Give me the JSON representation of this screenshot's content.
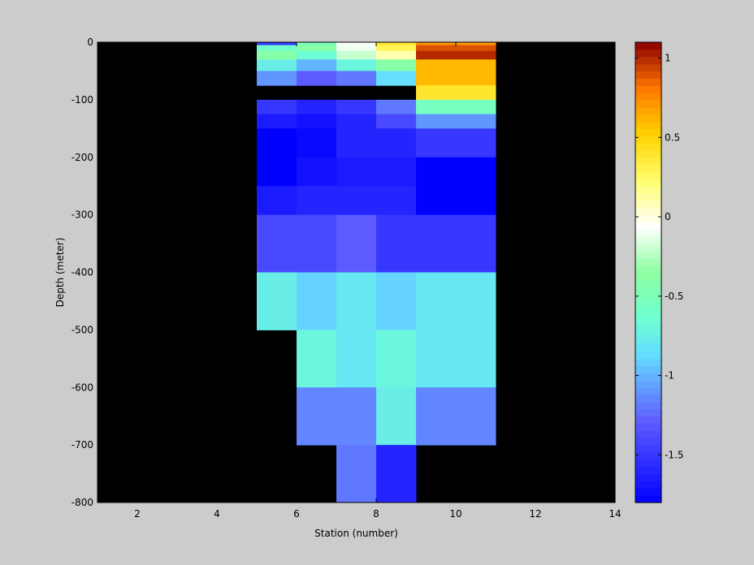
{
  "chart_data": {
    "type": "heatmap",
    "xlabel": "Station (number)",
    "ylabel": "Depth (meter)",
    "xlim": [
      1,
      14
    ],
    "ylim": [
      -800,
      0
    ],
    "x_ticks": [
      "2",
      "4",
      "6",
      "8",
      "10",
      "12",
      "14"
    ],
    "y_ticks": [
      "0",
      "-100",
      "-200",
      "-300",
      "-400",
      "-500",
      "-600",
      "-700",
      "-800"
    ],
    "nan_color": "#000000",
    "background_color": "#cccccc",
    "colorbar": {
      "range": [
        -1.8,
        1.1
      ],
      "ticks": [
        "1",
        "0.5",
        "0",
        "-0.5",
        "-1",
        "-1.5"
      ],
      "colormap": "jet-like (blue-cyan-green-white-yellow-orange-darkred)"
    },
    "cells": [
      {
        "x0": 5,
        "x1": 6,
        "y0": -5,
        "y1": 0,
        "value": -1.5
      },
      {
        "x0": 5,
        "x1": 6,
        "y0": -15,
        "y1": -5,
        "value": -0.6
      },
      {
        "x0": 5,
        "x1": 6,
        "y0": -30,
        "y1": -15,
        "value": -0.4
      },
      {
        "x0": 5,
        "x1": 6,
        "y0": -50,
        "y1": -30,
        "value": -0.75
      },
      {
        "x0": 5,
        "x1": 6,
        "y0": -75,
        "y1": -50,
        "value": -1.1
      },
      {
        "x0": 5,
        "x1": 6,
        "y0": -125,
        "y1": -100,
        "value": -1.5
      },
      {
        "x0": 5,
        "x1": 6,
        "y0": -150,
        "y1": -125,
        "value": -1.65
      },
      {
        "x0": 5,
        "x1": 6,
        "y0": -200,
        "y1": -150,
        "value": -1.8
      },
      {
        "x0": 5,
        "x1": 6,
        "y0": -250,
        "y1": -200,
        "value": -1.8
      },
      {
        "x0": 5,
        "x1": 6,
        "y0": -300,
        "y1": -250,
        "value": -1.65
      },
      {
        "x0": 5,
        "x1": 6,
        "y0": -400,
        "y1": -300,
        "value": -1.4
      },
      {
        "x0": 5,
        "x1": 6,
        "y0": -500,
        "y1": -400,
        "value": -0.75
      },
      {
        "x0": 6,
        "x1": 7,
        "y0": -5,
        "y1": 0,
        "value": -0.5
      },
      {
        "x0": 6,
        "x1": 7,
        "y0": -15,
        "y1": -5,
        "value": -0.4
      },
      {
        "x0": 6,
        "x1": 7,
        "y0": -30,
        "y1": -15,
        "value": -0.65
      },
      {
        "x0": 6,
        "x1": 7,
        "y0": -50,
        "y1": -30,
        "value": -1.0
      },
      {
        "x0": 6,
        "x1": 7,
        "y0": -75,
        "y1": -50,
        "value": -1.3
      },
      {
        "x0": 6,
        "x1": 7,
        "y0": -125,
        "y1": -100,
        "value": -1.6
      },
      {
        "x0": 6,
        "x1": 7,
        "y0": -150,
        "y1": -125,
        "value": -1.7
      },
      {
        "x0": 6,
        "x1": 7,
        "y0": -200,
        "y1": -150,
        "value": -1.75
      },
      {
        "x0": 6,
        "x1": 7,
        "y0": -250,
        "y1": -200,
        "value": -1.7
      },
      {
        "x0": 6,
        "x1": 7,
        "y0": -300,
        "y1": -250,
        "value": -1.6
      },
      {
        "x0": 6,
        "x1": 7,
        "y0": -400,
        "y1": -300,
        "value": -1.4
      },
      {
        "x0": 6,
        "x1": 7,
        "y0": -500,
        "y1": -400,
        "value": -0.9
      },
      {
        "x0": 6,
        "x1": 7,
        "y0": -600,
        "y1": -500,
        "value": -0.7
      },
      {
        "x0": 6,
        "x1": 7,
        "y0": -700,
        "y1": -600,
        "value": -1.15
      },
      {
        "x0": 7,
        "x1": 8,
        "y0": -5,
        "y1": 0,
        "value": -0.05
      },
      {
        "x0": 7,
        "x1": 8,
        "y0": -15,
        "y1": -5,
        "value": -0.1
      },
      {
        "x0": 7,
        "x1": 8,
        "y0": -30,
        "y1": -15,
        "value": -0.2
      },
      {
        "x0": 7,
        "x1": 8,
        "y0": -50,
        "y1": -30,
        "value": -0.7
      },
      {
        "x0": 7,
        "x1": 8,
        "y0": -75,
        "y1": -50,
        "value": -1.2
      },
      {
        "x0": 7,
        "x1": 8,
        "y0": -125,
        "y1": -100,
        "value": -1.5
      },
      {
        "x0": 7,
        "x1": 8,
        "y0": -150,
        "y1": -125,
        "value": -1.6
      },
      {
        "x0": 7,
        "x1": 8,
        "y0": -200,
        "y1": -150,
        "value": -1.6
      },
      {
        "x0": 7,
        "x1": 8,
        "y0": -250,
        "y1": -200,
        "value": -1.65
      },
      {
        "x0": 7,
        "x1": 8,
        "y0": -300,
        "y1": -250,
        "value": -1.6
      },
      {
        "x0": 7,
        "x1": 8,
        "y0": -400,
        "y1": -300,
        "value": -1.3
      },
      {
        "x0": 7,
        "x1": 8,
        "y0": -500,
        "y1": -400,
        "value": -0.8
      },
      {
        "x0": 7,
        "x1": 8,
        "y0": -600,
        "y1": -500,
        "value": -0.8
      },
      {
        "x0": 7,
        "x1": 8,
        "y0": -700,
        "y1": -600,
        "value": -1.15
      },
      {
        "x0": 7,
        "x1": 8,
        "y0": -800,
        "y1": -700,
        "value": -1.2
      },
      {
        "x0": 8,
        "x1": 9,
        "y0": -5,
        "y1": 0,
        "value": 0.4
      },
      {
        "x0": 8,
        "x1": 9,
        "y0": -15,
        "y1": -5,
        "value": 0.3
      },
      {
        "x0": 8,
        "x1": 9,
        "y0": -30,
        "y1": -15,
        "value": 0.1
      },
      {
        "x0": 8,
        "x1": 9,
        "y0": -50,
        "y1": -30,
        "value": -0.4
      },
      {
        "x0": 8,
        "x1": 9,
        "y0": -75,
        "y1": -50,
        "value": -0.85
      },
      {
        "x0": 8,
        "x1": 9,
        "y0": -125,
        "y1": -100,
        "value": -1.2
      },
      {
        "x0": 8,
        "x1": 9,
        "y0": -150,
        "y1": -125,
        "value": -1.4
      },
      {
        "x0": 8,
        "x1": 9,
        "y0": -200,
        "y1": -150,
        "value": -1.6
      },
      {
        "x0": 8,
        "x1": 9,
        "y0": -250,
        "y1": -200,
        "value": -1.65
      },
      {
        "x0": 8,
        "x1": 9,
        "y0": -300,
        "y1": -250,
        "value": -1.6
      },
      {
        "x0": 8,
        "x1": 9,
        "y0": -400,
        "y1": -300,
        "value": -1.5
      },
      {
        "x0": 8,
        "x1": 9,
        "y0": -500,
        "y1": -400,
        "value": -0.9
      },
      {
        "x0": 8,
        "x1": 9,
        "y0": -600,
        "y1": -500,
        "value": -0.7
      },
      {
        "x0": 8,
        "x1": 9,
        "y0": -700,
        "y1": -600,
        "value": -0.75
      },
      {
        "x0": 8,
        "x1": 9,
        "y0": -800,
        "y1": -700,
        "value": -1.6
      },
      {
        "x0": 9,
        "x1": 11,
        "y0": -5,
        "y1": 0,
        "value": 0.7
      },
      {
        "x0": 9,
        "x1": 11,
        "y0": -15,
        "y1": -5,
        "value": 0.9
      },
      {
        "x0": 9,
        "x1": 11,
        "y0": -30,
        "y1": -15,
        "value": 1.0
      },
      {
        "x0": 9,
        "x1": 11,
        "y0": -50,
        "y1": -30,
        "value": 0.6
      },
      {
        "x0": 9,
        "x1": 11,
        "y0": -75,
        "y1": -50,
        "value": 0.6
      },
      {
        "x0": 9,
        "x1": 11,
        "y0": -100,
        "y1": -75,
        "value": 0.4
      },
      {
        "x0": 9,
        "x1": 11,
        "y0": -125,
        "y1": -100,
        "value": -0.55
      },
      {
        "x0": 9,
        "x1": 11,
        "y0": -150,
        "y1": -125,
        "value": -1.1
      },
      {
        "x0": 9,
        "x1": 11,
        "y0": -200,
        "y1": -150,
        "value": -1.5
      },
      {
        "x0": 9,
        "x1": 11,
        "y0": -250,
        "y1": -200,
        "value": -1.8
      },
      {
        "x0": 9,
        "x1": 11,
        "y0": -300,
        "y1": -250,
        "value": -1.8
      },
      {
        "x0": 9,
        "x1": 11,
        "y0": -400,
        "y1": -300,
        "value": -1.5
      },
      {
        "x0": 9,
        "x1": 11,
        "y0": -500,
        "y1": -400,
        "value": -0.8
      },
      {
        "x0": 9,
        "x1": 11,
        "y0": -600,
        "y1": -500,
        "value": -0.8
      },
      {
        "x0": 9,
        "x1": 11,
        "y0": -700,
        "y1": -600,
        "value": -1.15
      }
    ]
  }
}
